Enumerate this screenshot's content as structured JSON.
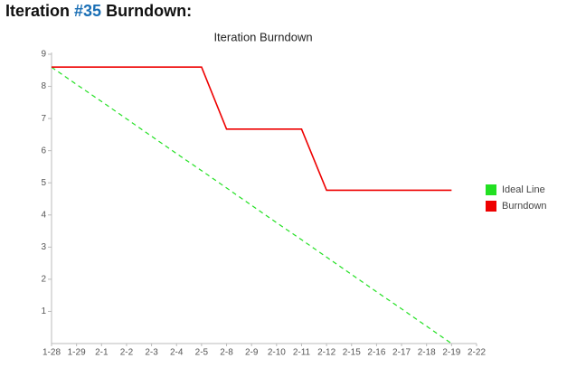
{
  "header": {
    "prefix": "Iteration",
    "link": "#35",
    "suffix": "Burndown:"
  },
  "chart_data": {
    "type": "line",
    "title": "Iteration Burndown",
    "categories": [
      "1-28",
      "1-29",
      "2-1",
      "2-2",
      "2-3",
      "2-4",
      "2-5",
      "2-8",
      "2-9",
      "2-10",
      "2-11",
      "2-12",
      "2-15",
      "2-16",
      "2-17",
      "2-18",
      "2-19",
      "2-22"
    ],
    "series": [
      {
        "name": "Ideal Line",
        "color": "#22e022",
        "dash": true,
        "values": [
          8.6,
          8.06,
          7.53,
          6.99,
          6.45,
          5.91,
          5.38,
          4.84,
          4.3,
          3.76,
          3.23,
          2.69,
          2.15,
          1.61,
          1.08,
          0.54,
          0,
          null
        ]
      },
      {
        "name": "Burndown",
        "color": "#ee0000",
        "dash": false,
        "values": [
          8.6,
          8.6,
          8.6,
          8.6,
          8.6,
          8.6,
          8.6,
          6.67,
          6.67,
          6.67,
          6.67,
          4.77,
          4.77,
          4.77,
          4.77,
          4.77,
          4.77,
          null
        ]
      }
    ],
    "ylim": [
      0,
      9
    ],
    "yticks": [
      1,
      2,
      3,
      4,
      5,
      6,
      7,
      8,
      9
    ],
    "grid": false,
    "legend": "right"
  }
}
